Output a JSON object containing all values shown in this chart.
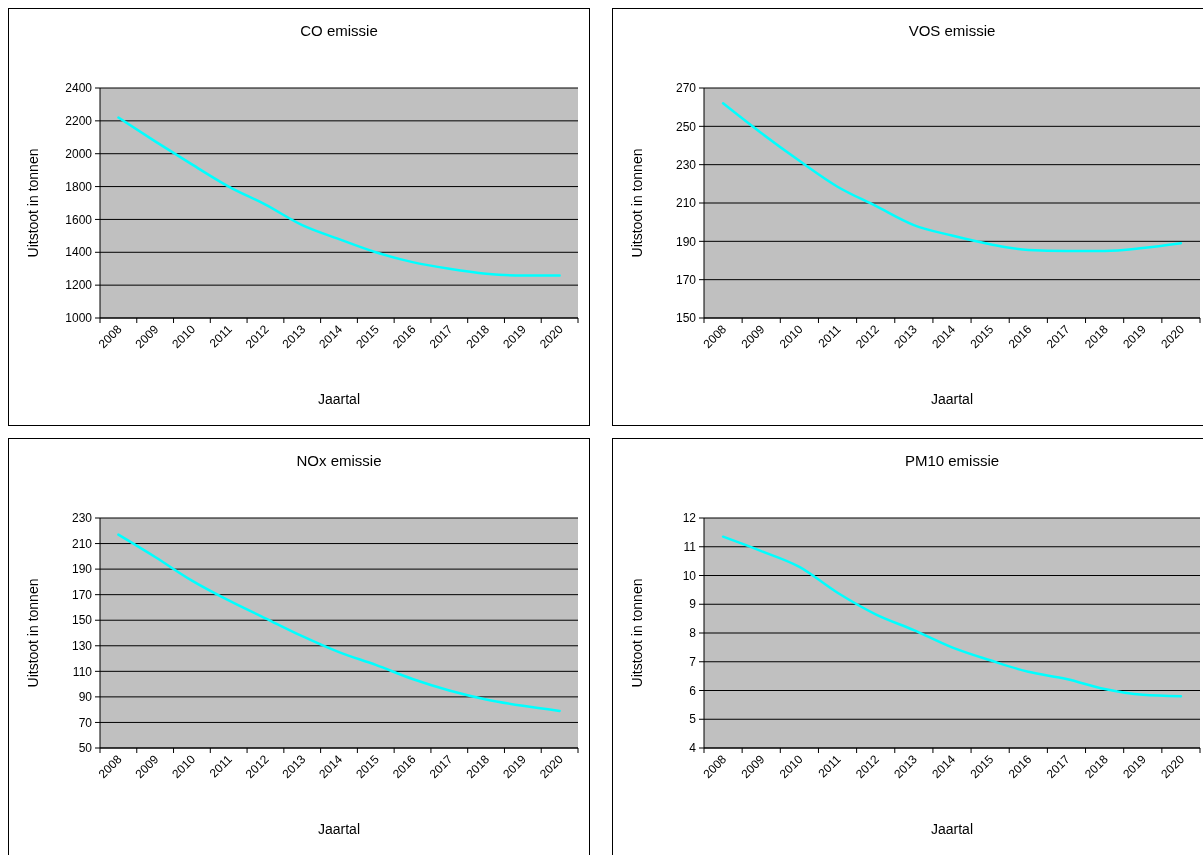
{
  "chart_data": [
    {
      "type": "line",
      "title": "CO emissie",
      "xlabel": "Jaartal",
      "ylabel": "Uitstoot in tonnen",
      "categories": [
        "2008",
        "2009",
        "2010",
        "2011",
        "2012",
        "2013",
        "2014",
        "2015",
        "2016",
        "2017",
        "2018",
        "2019",
        "2020"
      ],
      "series": [
        {
          "color": "#00ffff",
          "values": [
            2220,
            2075,
            1935,
            1800,
            1690,
            1565,
            1480,
            1400,
            1340,
            1300,
            1270,
            1258,
            1258
          ]
        }
      ],
      "ylim": [
        1000,
        2400
      ],
      "yticks": [
        1000,
        1200,
        1400,
        1600,
        1800,
        2000,
        2200,
        2400
      ],
      "grid": "y"
    },
    {
      "type": "line",
      "title": "VOS emissie",
      "xlabel": "Jaartal",
      "ylabel": "Uitstoot in tonnen",
      "categories": [
        "2008",
        "2009",
        "2010",
        "2011",
        "2012",
        "2013",
        "2014",
        "2015",
        "2016",
        "2017",
        "2018",
        "2019",
        "2020"
      ],
      "series": [
        {
          "color": "#00ffff",
          "values": [
            262,
            246.5,
            232,
            218.5,
            208.5,
            198.5,
            193,
            188.5,
            185.5,
            185,
            185,
            186.5,
            189
          ]
        }
      ],
      "ylim": [
        150,
        270
      ],
      "yticks": [
        150,
        170,
        190,
        210,
        230,
        250,
        270
      ],
      "grid": "y"
    },
    {
      "type": "line",
      "title": "NOx emissie",
      "xlabel": "Jaartal",
      "ylabel": "Uitstoot in tonnen",
      "categories": [
        "2008",
        "2009",
        "2010",
        "2011",
        "2012",
        "2013",
        "2014",
        "2015",
        "2016",
        "2017",
        "2018",
        "2019",
        "2020"
      ],
      "series": [
        {
          "color": "#00ffff",
          "values": [
            217,
            199.5,
            181,
            165.5,
            151.5,
            137.5,
            125,
            115,
            104,
            95,
            88,
            83,
            79
          ]
        }
      ],
      "ylim": [
        50,
        230
      ],
      "yticks": [
        50,
        70,
        90,
        110,
        130,
        150,
        170,
        190,
        210,
        230
      ],
      "grid": "y"
    },
    {
      "type": "line",
      "title": "PM10 emissie",
      "xlabel": "Jaartal",
      "ylabel": "Uitstoot in tonnen",
      "categories": [
        "2008",
        "2009",
        "2010",
        "2011",
        "2012",
        "2013",
        "2014",
        "2015",
        "2016",
        "2017",
        "2018",
        "2019",
        "2020"
      ],
      "series": [
        {
          "color": "#00ffff",
          "values": [
            11.35,
            10.85,
            10.3,
            9.4,
            8.65,
            8.1,
            7.5,
            7.05,
            6.65,
            6.4,
            6.05,
            5.85,
            5.8
          ]
        }
      ],
      "ylim": [
        4,
        12
      ],
      "yticks": [
        4,
        5,
        6,
        7,
        8,
        9,
        10,
        11,
        12
      ],
      "grid": "y"
    }
  ]
}
